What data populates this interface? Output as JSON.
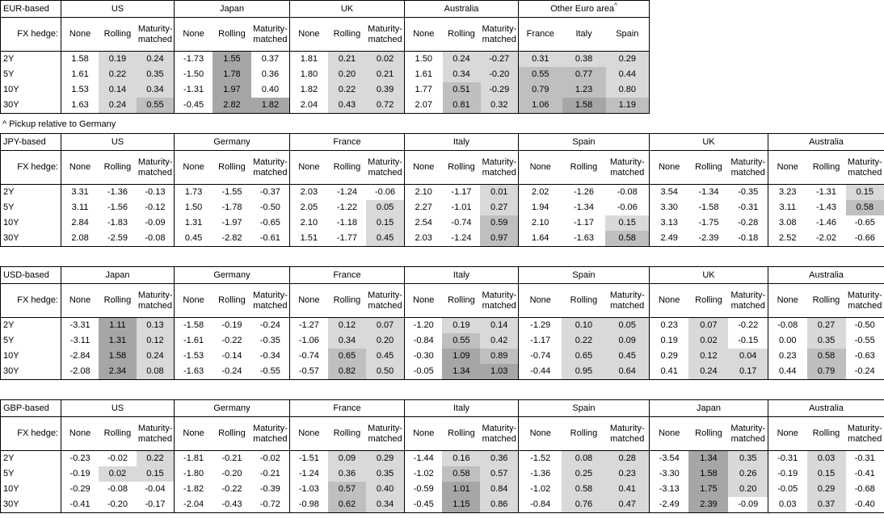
{
  "shade_colors": {
    "-": "#ffffff",
    "L": "#d9d9d9",
    "M": "#bfbfbf",
    "D": "#a6a6a6"
  },
  "footnote": "^ Pickup relative to Germany",
  "tables": [
    {
      "title": "EUR-based",
      "hedge_label": "FX hedge:",
      "groups": [
        {
          "name": "US",
          "columns": [
            "None",
            "Rolling",
            "Maturity-matched"
          ]
        },
        {
          "name": "Japan",
          "columns": [
            "None",
            "Rolling",
            "Maturity-matched"
          ]
        },
        {
          "name": "UK",
          "columns": [
            "None",
            "Rolling",
            "Maturity-matched"
          ]
        },
        {
          "name": "Australia",
          "columns": [
            "None",
            "Rolling",
            "Maturity-matched"
          ]
        },
        {
          "name": "Other Euro area",
          "note": "^",
          "columns": [
            "France",
            "Italy",
            "Spain"
          ]
        }
      ],
      "rows": [
        {
          "tenor": "2Y",
          "values": [
            "1.58",
            "0.19",
            "0.24",
            "-1.73",
            "1.55",
            "0.37",
            "1.81",
            "0.21",
            "0.02",
            "1.50",
            "0.24",
            "-0.27",
            "0.31",
            "0.38",
            "0.29"
          ],
          "shade": "-LL -D- -LL -LL LLL"
        },
        {
          "tenor": "5Y",
          "values": [
            "1.61",
            "0.22",
            "0.35",
            "-1.50",
            "1.78",
            "0.36",
            "1.80",
            "0.20",
            "0.21",
            "1.61",
            "0.34",
            "-0.20",
            "0.55",
            "0.77",
            "0.44"
          ],
          "shade": "-LL -D- -LL -LL MML"
        },
        {
          "tenor": "10Y",
          "values": [
            "1.53",
            "0.14",
            "0.34",
            "-1.31",
            "1.97",
            "0.40",
            "1.82",
            "0.22",
            "0.39",
            "1.77",
            "0.51",
            "-0.29",
            "0.79",
            "1.23",
            "0.80"
          ],
          "shade": "-LL -D- -LL -ML MML"
        },
        {
          "tenor": "30Y",
          "values": [
            "1.63",
            "0.24",
            "0.55",
            "-0.45",
            "2.82",
            "1.82",
            "2.04",
            "0.43",
            "0.72",
            "2.07",
            "0.81",
            "0.32",
            "1.06",
            "1.58",
            "1.19"
          ],
          "shade": "-LM -DD -LL -ML MDM"
        }
      ]
    },
    {
      "title": "JPY-based",
      "hedge_label": "FX hedge:",
      "groups": [
        {
          "name": "US",
          "columns": [
            "None",
            "Rolling",
            "Maturity-matched"
          ]
        },
        {
          "name": "Germany",
          "columns": [
            "None",
            "Rolling",
            "Maturity-matched"
          ]
        },
        {
          "name": "France",
          "columns": [
            "None",
            "Rolling",
            "Maturity-matched"
          ]
        },
        {
          "name": "Italy",
          "columns": [
            "None",
            "Rolling",
            "Maturity-matched"
          ]
        },
        {
          "name": "Spain",
          "columns": [
            "None",
            "Rolling",
            "Maturity-matched"
          ]
        },
        {
          "name": "UK",
          "columns": [
            "None",
            "Rolling",
            "Maturity-matched"
          ]
        },
        {
          "name": "Australia",
          "columns": [
            "None",
            "Rolling",
            "Maturity-matched"
          ]
        }
      ],
      "rows": [
        {
          "tenor": "2Y",
          "values": [
            "3.31",
            "-1.36",
            "-0.13",
            "1.73",
            "-1.55",
            "-0.37",
            "2.03",
            "-1.24",
            "-0.06",
            "2.10",
            "-1.17",
            "0.01",
            "2.02",
            "-1.26",
            "-0.08",
            "3.54",
            "-1.34",
            "-0.35",
            "3.23",
            "-1.31",
            "0.15"
          ],
          "shade": "--- --- --- --L --- --- --L"
        },
        {
          "tenor": "5Y",
          "values": [
            "3.11",
            "-1.56",
            "-0.12",
            "1.50",
            "-1.78",
            "-0.50",
            "2.05",
            "-1.22",
            "0.05",
            "2.27",
            "-1.01",
            "0.27",
            "1.94",
            "-1.34",
            "-0.06",
            "3.30",
            "-1.58",
            "-0.31",
            "3.11",
            "-1.43",
            "0.58"
          ],
          "shade": "--- --- --L --L --- --- --M"
        },
        {
          "tenor": "10Y",
          "values": [
            "2.84",
            "-1.83",
            "-0.09",
            "1.31",
            "-1.97",
            "-0.65",
            "2.10",
            "-1.18",
            "0.15",
            "2.54",
            "-0.74",
            "0.59",
            "2.10",
            "-1.17",
            "0.15",
            "3.13",
            "-1.75",
            "-0.28",
            "3.08",
            "-1.46",
            "-0.65"
          ],
          "shade": "--- --- --L --M --L --- ---"
        },
        {
          "tenor": "30Y",
          "values": [
            "2.08",
            "-2.59",
            "-0.08",
            "0.45",
            "-2.82",
            "-0.61",
            "1.51",
            "-1.77",
            "0.45",
            "2.03",
            "-1.24",
            "0.97",
            "1.64",
            "-1.63",
            "0.58",
            "2.49",
            "-2.39",
            "-0.18",
            "2.52",
            "-2.02",
            "-0.66"
          ],
          "shade": "--- --- --L --M --M --- ---"
        }
      ]
    },
    {
      "title": "USD-based",
      "hedge_label": "FX hedge:",
      "groups": [
        {
          "name": "Japan",
          "columns": [
            "None",
            "Rolling",
            "Maturity-matched"
          ]
        },
        {
          "name": "Germany",
          "columns": [
            "None",
            "Rolling",
            "Maturity-matched"
          ]
        },
        {
          "name": "France",
          "columns": [
            "None",
            "Rolling",
            "Maturity-matched"
          ]
        },
        {
          "name": "Italy",
          "columns": [
            "None",
            "Rolling",
            "Maturity-matched"
          ]
        },
        {
          "name": "Spain",
          "columns": [
            "None",
            "Rolling",
            "Maturity-matched"
          ]
        },
        {
          "name": "UK",
          "columns": [
            "None",
            "Rolling",
            "Maturity-matched"
          ]
        },
        {
          "name": "Australia",
          "columns": [
            "None",
            "Rolling",
            "Maturity-matched"
          ]
        }
      ],
      "rows": [
        {
          "tenor": "2Y",
          "values": [
            "-3.31",
            "1.11",
            "0.13",
            "-1.58",
            "-0.19",
            "-0.24",
            "-1.27",
            "0.12",
            "0.07",
            "-1.20",
            "0.19",
            "0.14",
            "-1.29",
            "0.10",
            "0.05",
            "0.23",
            "0.07",
            "-0.22",
            "-0.08",
            "0.27",
            "-0.50"
          ],
          "shade": "-DL --- -LL -LL -LL -L- -L-"
        },
        {
          "tenor": "5Y",
          "values": [
            "-3.11",
            "1.31",
            "0.12",
            "-1.61",
            "-0.22",
            "-0.35",
            "-1.06",
            "0.34",
            "0.20",
            "-0.84",
            "0.55",
            "0.42",
            "-1.17",
            "0.22",
            "0.09",
            "0.19",
            "0.02",
            "-0.15",
            "0.00",
            "0.35",
            "-0.55"
          ],
          "shade": "-DL --- -LL -ML -LL -L- -L-"
        },
        {
          "tenor": "10Y",
          "values": [
            "-2.84",
            "1.58",
            "0.24",
            "-1.53",
            "-0.14",
            "-0.34",
            "-0.74",
            "0.65",
            "0.45",
            "-0.30",
            "1.09",
            "0.89",
            "-0.74",
            "0.65",
            "0.45",
            "0.29",
            "0.12",
            "0.04",
            "0.23",
            "0.58",
            "-0.63"
          ],
          "shade": "-DL --- -ML -DM -LL -LL -M-"
        },
        {
          "tenor": "30Y",
          "values": [
            "-2.08",
            "2.34",
            "0.08",
            "-1.63",
            "-0.24",
            "-0.55",
            "-0.57",
            "0.82",
            "0.50",
            "-0.05",
            "1.34",
            "1.03",
            "-0.44",
            "0.95",
            "0.64",
            "0.41",
            "0.24",
            "0.17",
            "0.44",
            "0.79",
            "-0.24"
          ],
          "shade": "-DL --- -ML -DD -LL -LL -M-"
        }
      ]
    },
    {
      "title": "GBP-based",
      "hedge_label": "FX hedge:",
      "groups": [
        {
          "name": "US",
          "columns": [
            "None",
            "Rolling",
            "Maturity-matched"
          ]
        },
        {
          "name": "Germany",
          "columns": [
            "None",
            "Rolling",
            "Maturity-matched"
          ]
        },
        {
          "name": "France",
          "columns": [
            "None",
            "Rolling",
            "Maturity-matched"
          ]
        },
        {
          "name": "Italy",
          "columns": [
            "None",
            "Rolling",
            "Maturity-matched"
          ]
        },
        {
          "name": "Spain",
          "columns": [
            "None",
            "Rolling",
            "Maturity-matched"
          ]
        },
        {
          "name": "Japan",
          "columns": [
            "None",
            "Rolling",
            "Maturity-matched"
          ]
        },
        {
          "name": "Australia",
          "columns": [
            "None",
            "Rolling",
            "Maturity-matched"
          ]
        }
      ],
      "rows": [
        {
          "tenor": "2Y",
          "values": [
            "-0.23",
            "-0.02",
            "0.22",
            "-1.81",
            "-0.21",
            "-0.02",
            "-1.51",
            "0.09",
            "0.29",
            "-1.44",
            "0.16",
            "0.36",
            "-1.52",
            "0.08",
            "0.28",
            "-3.54",
            "1.34",
            "0.35",
            "-0.31",
            "0.03",
            "-0.31"
          ],
          "shade": "--L --- -LL -LL -LL -DL -L-"
        },
        {
          "tenor": "5Y",
          "values": [
            "-0.19",
            "0.02",
            "0.15",
            "-1.80",
            "-0.20",
            "-0.21",
            "-1.24",
            "0.36",
            "0.35",
            "-1.02",
            "0.58",
            "0.57",
            "-1.36",
            "0.25",
            "0.23",
            "-3.30",
            "1.58",
            "0.26",
            "-0.19",
            "0.15",
            "-0.41"
          ],
          "shade": "-LL --- -LL -ML -LL -DL -L-"
        },
        {
          "tenor": "10Y",
          "values": [
            "-0.29",
            "-0.08",
            "-0.04",
            "-1.82",
            "-0.22",
            "-0.39",
            "-1.03",
            "0.57",
            "0.40",
            "-0.59",
            "1.01",
            "0.84",
            "-1.02",
            "0.58",
            "0.41",
            "-3.13",
            "1.75",
            "0.20",
            "-0.05",
            "0.29",
            "-0.68"
          ],
          "shade": "--- --- -ML -DL -LL -DL -L-"
        },
        {
          "tenor": "30Y",
          "values": [
            "-0.41",
            "-0.20",
            "-0.17",
            "-2.04",
            "-0.43",
            "-0.72",
            "-0.98",
            "0.62",
            "0.34",
            "-0.45",
            "1.15",
            "0.86",
            "-0.84",
            "0.76",
            "0.47",
            "-2.49",
            "2.39",
            "-0.09",
            "0.03",
            "0.37",
            "-0.40"
          ],
          "shade": "--- --- -ML -DL -LL -D- -L-"
        }
      ]
    }
  ]
}
